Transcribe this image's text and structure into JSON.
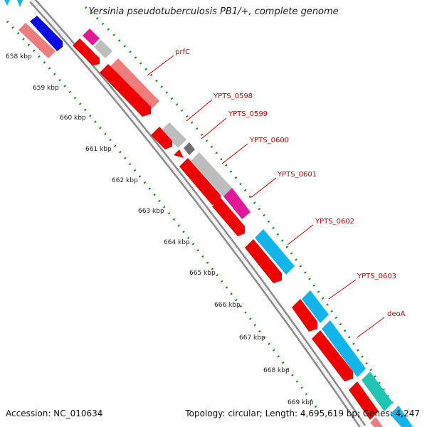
{
  "title": "Yersinia pseudotuberculosis PB1/+, complete genome",
  "footer": {
    "accession": "Accession: NC_010634",
    "topology": "Topology: circular; Length: 4,695,619 bp; Genes: 4,247"
  },
  "ticks": [
    "658 kbp",
    "659 kbp",
    "660 kbp",
    "661 kbp",
    "662 kbp",
    "663 kbp",
    "664 kbp",
    "665 kbp",
    "666 kbp",
    "667 kbp",
    "668 kbp",
    "669 kbp"
  ],
  "gene_labels": [
    "prfC",
    "YPTS_0598",
    "YPTS_0599",
    "YPTS_0600",
    "YPTS_0601",
    "YPTS_0602",
    "YPTS_0603",
    "deoA"
  ],
  "colors": {
    "backbone": "#8c8c8c",
    "cds_red": "#f00000",
    "pink": "#ee7d7d",
    "magenta": "#e2189a",
    "grey": "#bdbdbd",
    "dark_grey": "#6f6f6f",
    "cyan": "#12b4ec",
    "teal": "#1fc6b4",
    "blue": "#0a0ae8",
    "dotted": "#1a8c1a",
    "label_red": "#cc0000"
  }
}
